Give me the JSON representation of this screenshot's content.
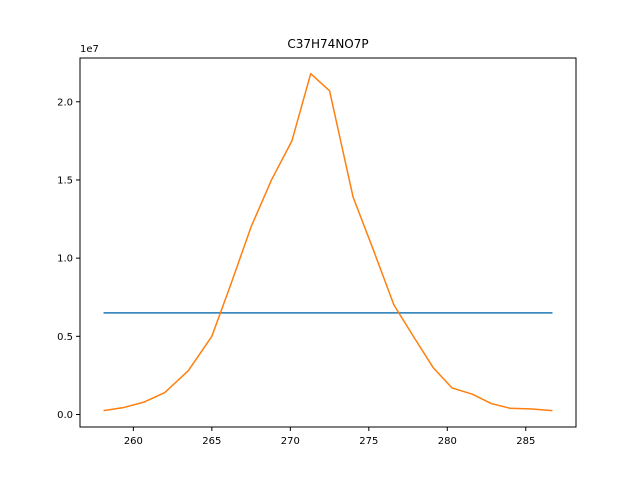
{
  "chart_data": {
    "type": "line",
    "title": "C37H74NO7P",
    "xlabel": "",
    "ylabel": "",
    "xlim": [
      256.6,
      288.2
    ],
    "ylim": [
      -0.08,
      2.28
    ],
    "y_offset_label": "1e7",
    "x_ticks": [
      260,
      265,
      270,
      275,
      280,
      285
    ],
    "x_tick_labels": [
      "260",
      "265",
      "270",
      "275",
      "280",
      "285"
    ],
    "y_ticks": [
      0.0,
      0.5,
      1.0,
      1.5,
      2.0
    ],
    "y_tick_labels": [
      "0.0",
      "0.5",
      "1.0",
      "1.5",
      "2.0"
    ],
    "grid": false,
    "series": [
      {
        "color": "#1f77b4",
        "x": [
          258.1,
          286.7
        ],
        "y": [
          0.65,
          0.65
        ]
      },
      {
        "color": "#ff7f0e",
        "x": [
          258.1,
          259.4,
          260.7,
          262.0,
          263.5,
          265.0,
          266.2,
          267.5,
          268.8,
          270.1,
          271.3,
          272.5,
          274.0,
          275.3,
          276.6,
          277.9,
          279.1,
          280.3,
          281.6,
          282.8,
          284.0,
          285.4,
          286.7
        ],
        "y": [
          0.025,
          0.045,
          0.08,
          0.14,
          0.28,
          0.5,
          0.83,
          1.2,
          1.5,
          1.75,
          2.18,
          2.07,
          1.39,
          1.05,
          0.7,
          0.49,
          0.3,
          0.17,
          0.13,
          0.07,
          0.04,
          0.035,
          0.025
        ]
      }
    ]
  }
}
